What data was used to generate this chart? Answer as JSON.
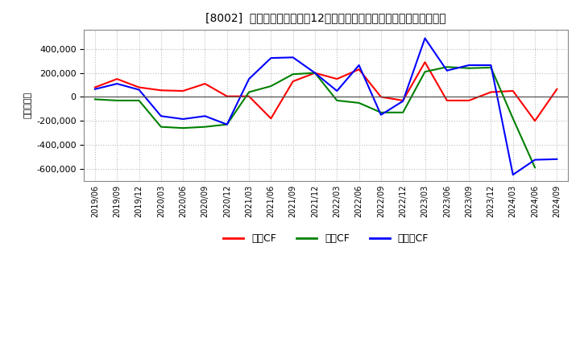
{
  "title": "[8002]  キャッシュフローの12か月移動合計の対前年同期増減額の推移",
  "ylabel": "（百万円）",
  "background_color": "#ffffff",
  "plot_bg_color": "#ffffff",
  "grid_color": "#bbbbbb",
  "legend": [
    "営業CF",
    "投資CF",
    "フリーCF"
  ],
  "colors": {
    "営業CF": "#ff0000",
    "投資CF": "#008000",
    "フリーCF": "#0000ff"
  },
  "xlabels": [
    "2019/06",
    "2019/09",
    "2019/12",
    "2020/03",
    "2020/06",
    "2020/09",
    "2020/12",
    "2021/03",
    "2021/06",
    "2021/09",
    "2021/12",
    "2022/03",
    "2022/06",
    "2022/09",
    "2022/12",
    "2023/03",
    "2023/06",
    "2023/09",
    "2023/12",
    "2024/03",
    "2024/06",
    "2024/09"
  ],
  "営業CF": [
    80000,
    150000,
    80000,
    55000,
    50000,
    110000,
    5000,
    5000,
    -180000,
    130000,
    200000,
    150000,
    230000,
    0,
    -30000,
    290000,
    -30000,
    -30000,
    40000,
    50000,
    -200000,
    65000
  ],
  "投資CF": [
    -20000,
    -30000,
    -30000,
    -250000,
    -260000,
    -250000,
    -230000,
    40000,
    90000,
    190000,
    200000,
    -30000,
    -50000,
    -130000,
    -130000,
    210000,
    250000,
    240000,
    245000,
    -180000,
    -590000,
    null
  ],
  "フリーCF": [
    65000,
    110000,
    60000,
    -160000,
    -185000,
    -160000,
    -230000,
    150000,
    325000,
    330000,
    200000,
    50000,
    265000,
    -150000,
    -35000,
    490000,
    220000,
    265000,
    265000,
    -650000,
    -525000,
    -520000
  ],
  "ylim": [
    -700000,
    560000
  ],
  "yticks": [
    -600000,
    -400000,
    -200000,
    0,
    200000,
    400000
  ]
}
